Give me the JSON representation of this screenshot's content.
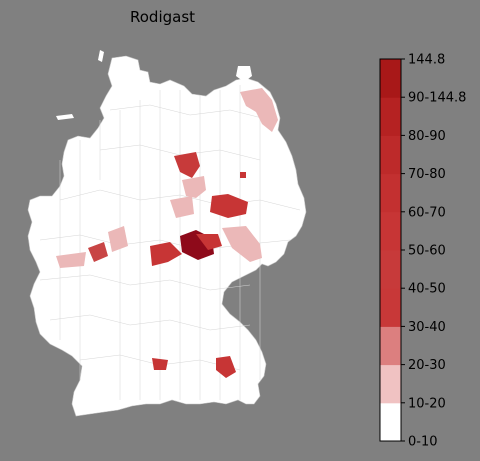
{
  "title": "Rodigast",
  "colorbar": {
    "labels": [
      "0-10",
      "10-20",
      "20-30",
      "30-40",
      "40-50",
      "50-60",
      "60-70",
      "70-80",
      "80-90",
      "90-144.8",
      "144.8"
    ],
    "colors": [
      "#ffffff",
      "#f0c2c2",
      "#dc7f7f",
      "#c83838",
      "#c73a3a",
      "#c73535",
      "#c33030",
      "#bd2a2a",
      "#b52222",
      "#a81818",
      "#970d1e"
    ]
  },
  "colors": {
    "background": "#808080",
    "land": "#ffffff",
    "border": "#d0d0d0"
  }
}
